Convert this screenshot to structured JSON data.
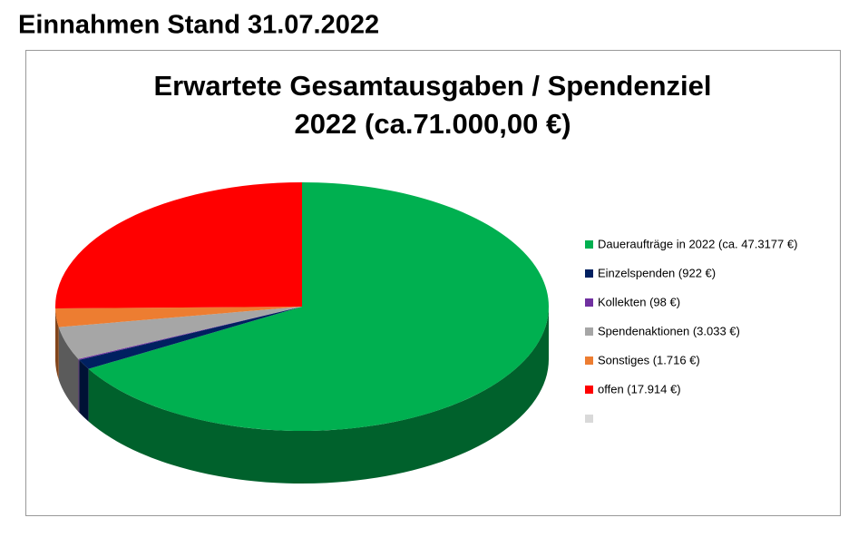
{
  "heading": "Einnahmen Stand 31.07.2022",
  "chart_data": {
    "type": "pie",
    "title": [
      "Erwartete Gesamtausgaben / Spendenziel",
      "2022 (ca.71.000,00 €)"
    ],
    "categories": [
      "Daueraufträge in 2022 (ca. 47.3177 €)",
      "Einzelspenden (922 €)",
      "Kollekten (98 €)",
      "Spendenaktionen (3.033 €)",
      "Sonstiges (1.716 €)",
      "offen (17.914 €)",
      null
    ],
    "values": [
      47317.7,
      922,
      98,
      3033,
      1716,
      17914,
      null
    ],
    "colors": [
      "#00b050",
      "#002060",
      "#7030a0",
      "#a6a6a6",
      "#ed7d31",
      "#ff0000",
      "#d9d9d9"
    ],
    "legend": "right"
  }
}
